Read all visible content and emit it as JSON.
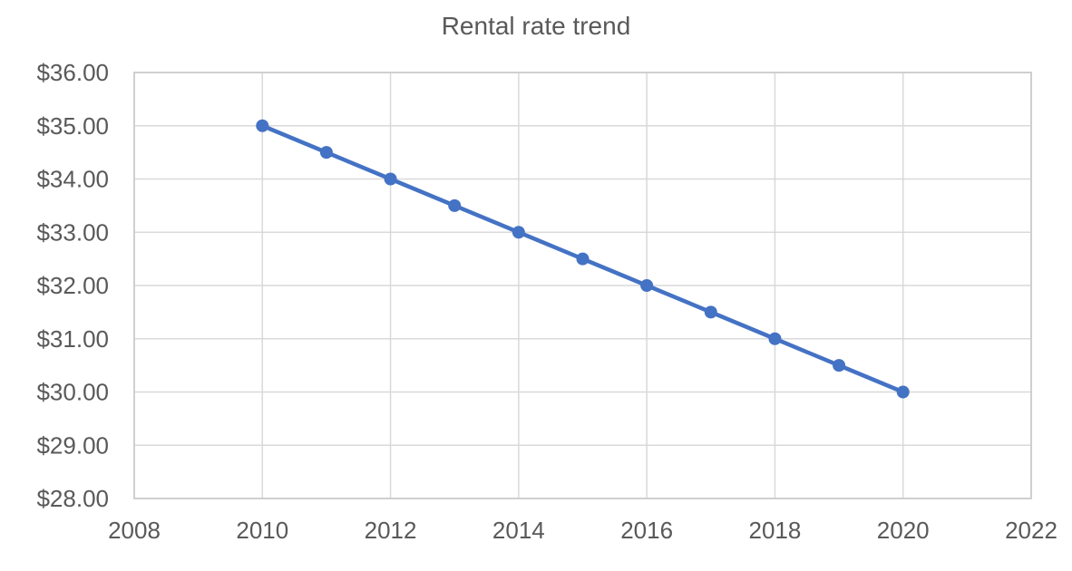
{
  "chart_data": {
    "type": "line",
    "title": "Rental rate trend",
    "x": [
      2010,
      2011,
      2012,
      2013,
      2014,
      2015,
      2016,
      2017,
      2018,
      2019,
      2020
    ],
    "values": [
      35.0,
      34.5,
      34.0,
      33.5,
      33.0,
      32.5,
      32.0,
      31.5,
      31.0,
      30.5,
      30.0
    ],
    "xlabel": "",
    "ylabel": "",
    "xlim": [
      2008,
      2022
    ],
    "ylim": [
      28,
      36
    ],
    "x_ticks": [
      2008,
      2010,
      2012,
      2014,
      2016,
      2018,
      2020,
      2022
    ],
    "y_tick_values": [
      28,
      29,
      30,
      31,
      32,
      33,
      34,
      35,
      36
    ],
    "y_tick_labels": [
      "$28.00",
      "$29.00",
      "$30.00",
      "$31.00",
      "$32.00",
      "$33.00",
      "$34.00",
      "$35.00",
      "$36.00"
    ],
    "grid": true,
    "legend_position": "none",
    "line_color": "#4472C4",
    "marker": "circle",
    "gridline_color": "#D9D9D9",
    "border_color": "#CFCFCF",
    "text_color": "#595959",
    "background_color": "#FFFFFF"
  }
}
